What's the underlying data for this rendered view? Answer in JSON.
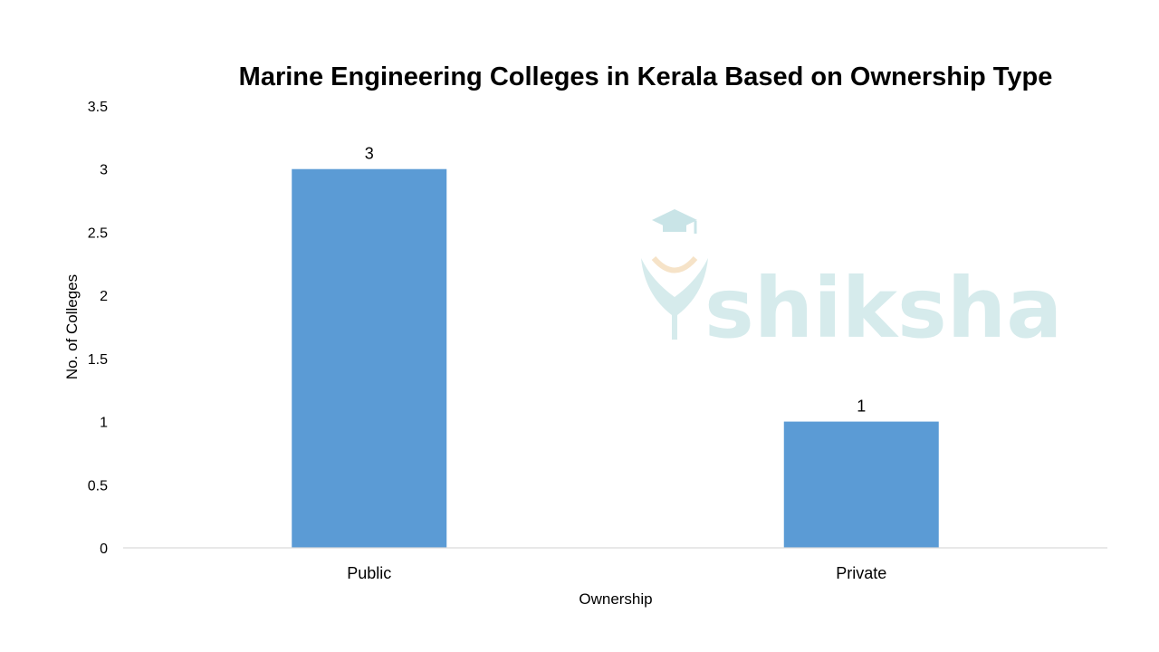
{
  "chart_data": {
    "type": "bar",
    "title": "Marine Engineering Colleges in Kerala Based on Ownership Type",
    "xlabel": "Ownership",
    "ylabel": "No. of Colleges",
    "categories": [
      "Public",
      "Private"
    ],
    "values": [
      3,
      1
    ],
    "data_labels": [
      "3",
      "1"
    ],
    "ylim": [
      0,
      3.5
    ],
    "yticks": [
      0,
      0.5,
      1,
      1.5,
      2,
      2.5,
      3,
      3.5
    ],
    "ytick_labels": [
      "0",
      "0.5",
      "1",
      "1.5",
      "2",
      "2.5",
      "3",
      "3.5"
    ],
    "grid": false,
    "legend": "none",
    "bar_color": "#5b9bd5"
  },
  "watermark": {
    "text": "shiksha",
    "icon": "graduation-cap-logo-icon"
  }
}
